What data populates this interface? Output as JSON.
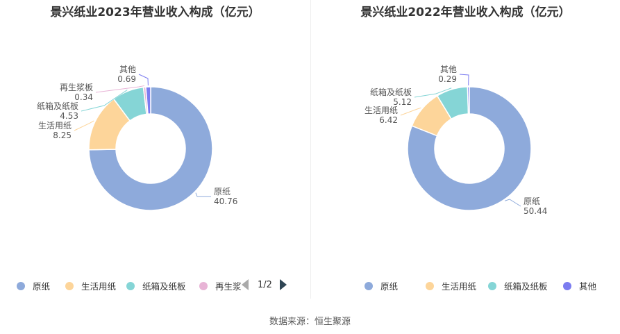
{
  "source": "数据来源：恒生聚源",
  "pager": {
    "text": "1/2"
  },
  "chart_data": [
    {
      "type": "pie",
      "title": "景兴纸业2023年营业收入构成（亿元）",
      "categories": [
        "原纸",
        "生活用纸",
        "纸箱及纸板",
        "再生浆板",
        "其他"
      ],
      "values": [
        40.76,
        8.25,
        4.53,
        0.34,
        0.69
      ],
      "value_labels": [
        "40.76",
        "8.25",
        "4.53",
        "0.34",
        "0.69"
      ],
      "colors": [
        "#8eaadb",
        "#fdd59a",
        "#85d5d6",
        "#e8b4d6",
        "#7b7cf0"
      ],
      "legend": [
        "原纸",
        "生活用纸",
        "纸箱及纸板",
        "再生浆"
      ],
      "legend_colors": [
        "#8eaadb",
        "#fdd59a",
        "#85d5d6",
        "#e8b4d6"
      ]
    },
    {
      "type": "pie",
      "title": "景兴纸业2022年营业收入构成（亿元）",
      "categories": [
        "原纸",
        "生活用纸",
        "纸箱及纸板",
        "其他"
      ],
      "values": [
        50.44,
        6.42,
        5.12,
        0.29
      ],
      "value_labels": [
        "50.44",
        "6.42",
        "5.12",
        "0.29"
      ],
      "colors": [
        "#8eaadb",
        "#fdd59a",
        "#85d5d6",
        "#7b7cf0"
      ],
      "legend": [
        "原纸",
        "生活用纸",
        "纸箱及纸板",
        "其他"
      ],
      "legend_colors": [
        "#8eaadb",
        "#fdd59a",
        "#85d5d6",
        "#7b7cf0"
      ]
    }
  ]
}
